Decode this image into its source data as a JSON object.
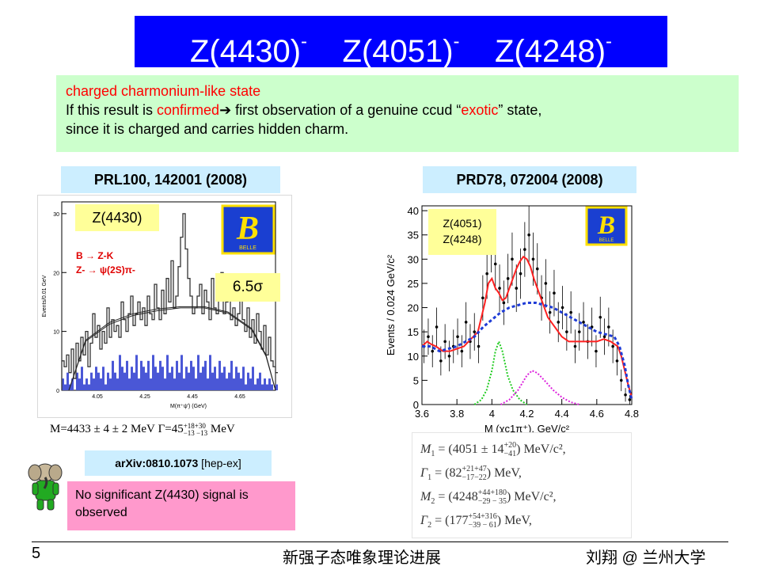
{
  "slide": {
    "title_parts": [
      {
        "name": "Z(4430)",
        "sup": "-"
      },
      {
        "name": "Z(4051)",
        "sup": "-"
      },
      {
        "name": "Z(4248)",
        "sup": "-"
      }
    ],
    "intro": {
      "line1": "charged charmonium-like state",
      "line2_before": "If this result is ",
      "line2_red": "confirmed",
      "line2_arrow": "➔",
      "line2_after": " first observation of a genuine ccud “",
      "line2_red2": "exotic",
      "line2_end": "” state,",
      "line3": "since it is charged and carries hidden charm."
    },
    "left_ref": "PRL100, 142001 (2008)",
    "right_ref": "PRD78, 072004 (2008)",
    "arxiv_ref": {
      "id": "arXiv:0810.1073",
      "category": " [hep-ex]"
    },
    "no_signal_note": "No significant Z(4430) signal is observed",
    "mass_formula_left": {
      "m": "M=4433 ± 4 ± 2 MeV",
      "g_pre": "Γ=45",
      "sup": "+18+30",
      "sub": "−13 −13",
      "g_post": " MeV"
    },
    "results_right": [
      {
        "sym": "M",
        "idx": "1",
        "val": "(4051 ± 14",
        "sup": "+20",
        "sub": "−41",
        "unit": ") MeV/c², "
      },
      {
        "sym": "Γ",
        "idx": "1",
        "val": "(82",
        "sup": "+21+47",
        "sub": "−17−22",
        "unit": ") MeV, "
      },
      {
        "sym": "M",
        "idx": "2",
        "val": "(4248",
        "sup": "+44+180",
        "sub": "−29 − 35",
        "unit": ") MeV/c², "
      },
      {
        "sym": "Γ",
        "idx": "2",
        "val": "(177",
        "sup": "+54+316",
        "sub": "−39 − 61",
        "unit": ") MeV, "
      }
    ],
    "footer": {
      "page": "5",
      "center": "新强子态唯象理论进展",
      "right": "刘翔 @ 兰州大学"
    }
  },
  "logo_text": "BELLE",
  "colors": {
    "title_bg": "#0000ff",
    "intro_bg": "#ccffcc",
    "ref_bg": "#cceeff",
    "label_bg": "#ffff99",
    "note_bg": "#ff99cc",
    "accent_red": "#ff0000"
  },
  "chart_data": [
    {
      "type": "bar",
      "label": "Z(4430)",
      "decay_lines": [
        "B → Z-K",
        "Z- → ψ(2S)π-"
      ],
      "significance": "6.5σ",
      "xlabel": "M(π⁺ψ′) (GeV)",
      "ylabel": "Events/0.01 GeV",
      "xlim": [
        3.9,
        4.8
      ],
      "ylim": [
        0,
        32
      ],
      "x_ticks": [
        4.05,
        4.25,
        4.45,
        4.65
      ],
      "x_tick_labels": [
        "4.05",
        "4.25",
        "4.45",
        "4.65"
      ],
      "y_ticks": [
        0,
        10,
        20,
        30
      ],
      "y_tick_labels": [
        "0",
        "10",
        "20",
        "30"
      ],
      "bin_width": 0.01,
      "series": [
        {
          "values": [
            5,
            4,
            6,
            3,
            7,
            2,
            8,
            5,
            9,
            6,
            10,
            4,
            8,
            13,
            9,
            11,
            7,
            10,
            8,
            14,
            9,
            12,
            10,
            11,
            9,
            15,
            12,
            10,
            13,
            16,
            11,
            13,
            15,
            12,
            14,
            11,
            16,
            13,
            12,
            18,
            14,
            12,
            17,
            13,
            19,
            15,
            22,
            14,
            16,
            21,
            26,
            30,
            24,
            19,
            16,
            13,
            14,
            16,
            18,
            13,
            17,
            15,
            12,
            19,
            14,
            13,
            16,
            20,
            13,
            15,
            17,
            12,
            14,
            11,
            13,
            16,
            12,
            10,
            14,
            9,
            12,
            8,
            13,
            10,
            7,
            11,
            6,
            9,
            5,
            4,
            3
          ]
        },
        {
          "values": [
            2,
            1,
            3,
            1,
            2,
            0,
            3,
            2,
            4,
            1,
            2,
            1,
            3,
            2,
            4,
            3,
            2,
            4,
            1,
            3,
            2,
            5,
            3,
            2,
            6,
            4,
            3,
            5,
            2,
            4,
            3,
            6,
            2,
            5,
            4,
            3,
            5,
            2,
            6,
            4,
            3,
            5,
            4,
            2,
            6,
            3,
            4,
            2,
            5,
            3,
            6,
            2,
            4,
            3,
            5,
            4,
            2,
            6,
            3,
            4,
            5,
            2,
            6,
            3,
            4,
            2,
            5,
            3,
            4,
            2,
            3,
            5,
            2,
            4,
            3,
            2,
            4,
            1,
            3,
            2,
            4,
            1,
            2,
            3,
            1,
            2,
            1,
            2,
            1,
            0,
            1
          ]
        },
        {
          "x": [
            3.93,
            4.0,
            4.1,
            4.2,
            4.3,
            4.4,
            4.5,
            4.6,
            4.7,
            4.76,
            4.8
          ],
          "y": [
            0,
            8.5,
            11.5,
            13.0,
            13.8,
            14.2,
            14.2,
            13.3,
            10.5,
            6.0,
            0
          ]
        },
        {
          "x": [
            3.93,
            4.0,
            4.1,
            4.2,
            4.3,
            4.4,
            4.5,
            4.6,
            4.7,
            4.76,
            4.8
          ],
          "y": [
            0,
            8.3,
            11.2,
            12.7,
            13.5,
            14.0,
            14.0,
            13.1,
            10.3,
            5.8,
            0
          ]
        }
      ]
    },
    {
      "type": "line",
      "labels": [
        "Z(4051)",
        "Z(4248)"
      ],
      "xlabel": "M (χc1π⁺), GeV/c²",
      "ylabel": "Events / 0.024 GeV/c²",
      "xlim": [
        3.6,
        4.8
      ],
      "ylim": [
        0,
        41
      ],
      "x_ticks": [
        3.6,
        3.8,
        4.0,
        4.2,
        4.4,
        4.6,
        4.8
      ],
      "x_tick_labels": [
        "3.6",
        "3.8",
        "4",
        "4.2",
        "4.4",
        "4.6",
        "4.8"
      ],
      "y_ticks": [
        0,
        5,
        10,
        15,
        20,
        25,
        30,
        35,
        40
      ],
      "y_tick_labels": [
        "0",
        "5",
        "10",
        "15",
        "20",
        "25",
        "30",
        "35",
        "40"
      ],
      "series": [
        {
          "x": [
            3.612,
            3.636,
            3.66,
            3.684,
            3.708,
            3.732,
            3.756,
            3.78,
            3.804,
            3.828,
            3.852,
            3.876,
            3.9,
            3.924,
            3.948,
            3.972,
            3.996,
            4.02,
            4.044,
            4.068,
            4.092,
            4.116,
            4.14,
            4.164,
            4.188,
            4.212,
            4.236,
            4.26,
            4.284,
            4.308,
            4.332,
            4.356,
            4.38,
            4.404,
            4.428,
            4.452,
            4.476,
            4.5,
            4.524,
            4.548,
            4.572,
            4.596,
            4.62,
            4.644,
            4.668,
            4.692,
            4.716,
            4.74,
            4.764,
            4.788
          ],
          "y": [
            12,
            14,
            11,
            16,
            9,
            13,
            10,
            12,
            14,
            11,
            17,
            13,
            15,
            12,
            22,
            27,
            33,
            29,
            24,
            21,
            26,
            30,
            24,
            27,
            32,
            35,
            30,
            28,
            22,
            25,
            19,
            23,
            17,
            20,
            15,
            19,
            12,
            15,
            17,
            13,
            16,
            11,
            18,
            14,
            16,
            12,
            9,
            5,
            2,
            1
          ]
        },
        {
          "x": [
            3.6,
            3.63,
            3.65,
            3.68,
            3.72,
            3.76,
            3.8,
            3.84,
            3.88,
            3.92,
            3.96,
            3.98,
            4.0,
            4.02,
            4.04,
            4.06,
            4.08,
            4.1,
            4.12,
            4.14,
            4.16,
            4.18,
            4.2,
            4.22,
            4.24,
            4.26,
            4.28,
            4.3,
            4.32,
            4.34,
            4.36,
            4.4,
            4.44,
            4.48,
            4.52,
            4.56,
            4.6,
            4.64,
            4.68,
            4.72,
            4.74,
            4.76,
            4.78,
            4.8
          ],
          "y": [
            12,
            13,
            12.5,
            12,
            11,
            11,
            11.5,
            12,
            13.5,
            15,
            21,
            25,
            26,
            24,
            23,
            21.5,
            22,
            24,
            26,
            28,
            29.5,
            30.5,
            30,
            28.5,
            26,
            24,
            22,
            20,
            18,
            17,
            16,
            14,
            13,
            13,
            13,
            13,
            13,
            13.5,
            13,
            12,
            10,
            7,
            4,
            1.5
          ]
        },
        {
          "x": [
            3.6,
            3.65,
            3.7,
            3.75,
            3.8,
            3.85,
            3.9,
            3.95,
            4.0,
            4.05,
            4.1,
            4.15,
            4.2,
            4.25,
            4.3,
            4.35,
            4.4,
            4.45,
            4.5,
            4.55,
            4.6,
            4.65,
            4.7,
            4.73,
            4.76,
            4.78,
            4.8
          ],
          "y": [
            12,
            12,
            11,
            11.5,
            12,
            13,
            14,
            16,
            17.5,
            19,
            20,
            20.5,
            21,
            21,
            20.5,
            20,
            19,
            18,
            17,
            16,
            15,
            14.5,
            14,
            12,
            8,
            4,
            1
          ]
        },
        {
          "x": [
            3.9,
            3.94,
            3.97,
            4.0,
            4.02,
            4.04,
            4.06,
            4.09,
            4.12,
            4.16,
            4.2
          ],
          "y": [
            0,
            1,
            3,
            7,
            11,
            13,
            11,
            6,
            3,
            1,
            0
          ]
        },
        {
          "x": [
            4.05,
            4.1,
            4.15,
            4.2,
            4.23,
            4.26,
            4.3,
            4.35,
            4.4,
            4.45,
            4.5
          ],
          "y": [
            0,
            1,
            3,
            6,
            7,
            6.5,
            5,
            3,
            1.5,
            0.5,
            0
          ]
        }
      ]
    }
  ]
}
